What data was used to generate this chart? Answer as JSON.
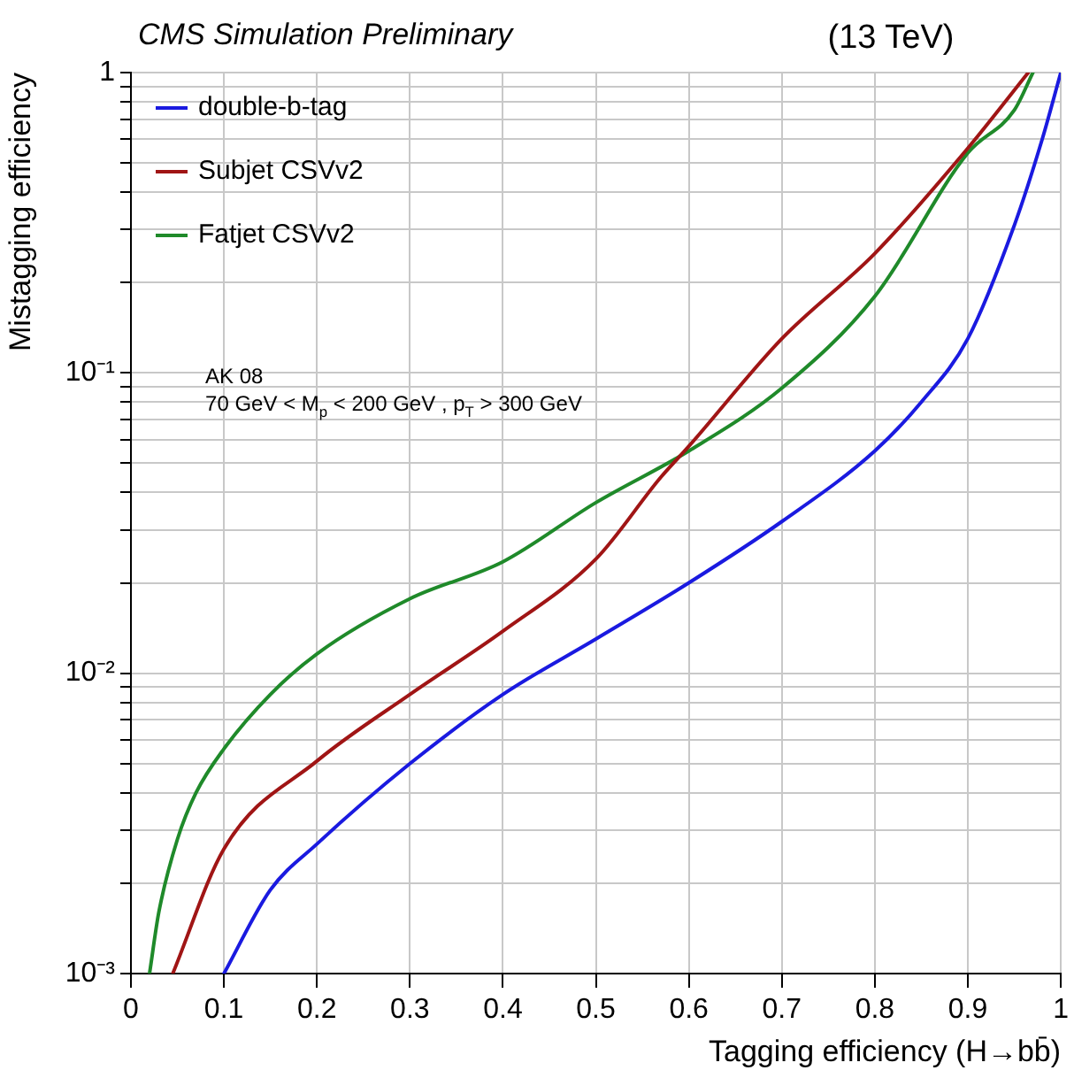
{
  "chart_data": {
    "type": "line",
    "title": "CMS Simulation Preliminary",
    "xlabel": "Tagging efficiency (H→bb̄)",
    "ylabel": "Mistagging efficiency",
    "annotations": [
      "(13 TeV)",
      "AK 08",
      "70 GeV < M$_{p}$ < 200 GeV , p$_{T}$ > 300 GeV"
    ],
    "log": "y",
    "grid": true,
    "legend": "top left",
    "marker": "none",
    "line_style": "solid",
    "xlim": [
      0,
      1
    ],
    "xticks": [
      0,
      0.1,
      0.2,
      0.3,
      0.4,
      0.5,
      0.6,
      0.7,
      0.8,
      0.9,
      1
    ],
    "ylim": [
      0.001,
      1
    ],
    "yticks": [
      {
        "value": 0.001,
        "label": "10⁻³"
      },
      {
        "value": 0.002,
        "label": null
      },
      {
        "value": 0.003,
        "label": null
      },
      {
        "value": 0.004,
        "label": null
      },
      {
        "value": 0.005,
        "label": null
      },
      {
        "value": 0.006,
        "label": null
      },
      {
        "value": 0.007,
        "label": null
      },
      {
        "value": 0.008,
        "label": null
      },
      {
        "value": 0.009,
        "label": null
      },
      {
        "value": 0.01,
        "label": "10⁻²"
      },
      {
        "value": 0.02,
        "label": null
      },
      {
        "value": 0.03,
        "label": null
      },
      {
        "value": 0.04,
        "label": null
      },
      {
        "value": 0.05,
        "label": null
      },
      {
        "value": 0.06,
        "label": null
      },
      {
        "value": 0.07,
        "label": null
      },
      {
        "value": 0.08,
        "label": null
      },
      {
        "value": 0.09,
        "label": null
      },
      {
        "value": 0.1,
        "label": "10⁻¹"
      },
      {
        "value": 0.2,
        "label": null
      },
      {
        "value": 0.3,
        "label": null
      },
      {
        "value": 0.4,
        "label": null
      },
      {
        "value": 0.5,
        "label": null
      },
      {
        "value": 0.6,
        "label": null
      },
      {
        "value": 0.7,
        "label": null
      },
      {
        "value": 0.8,
        "label": null
      },
      {
        "value": 0.9,
        "label": null
      },
      {
        "value": 1,
        "label": "1"
      }
    ],
    "series": [
      {
        "name": "double-b-tag",
        "color": "#1a1ae0",
        "x": [
          0.1,
          0.15,
          0.2,
          0.3,
          0.4,
          0.5,
          0.6,
          0.7,
          0.8,
          0.85,
          0.9,
          0.95,
          0.98,
          1
        ],
        "values": [
          0.001,
          0.0019,
          0.0027,
          0.005,
          0.0085,
          0.013,
          0.02,
          0.032,
          0.055,
          0.08,
          0.13,
          0.31,
          0.6,
          1
        ]
      },
      {
        "name": "Subjet CSVv2",
        "color": "#a01515",
        "x": [
          0.045,
          0.1,
          0.2,
          0.3,
          0.4,
          0.5,
          0.57,
          0.6,
          0.7,
          0.8,
          0.9,
          0.965
        ],
        "values": [
          0.001,
          0.0026,
          0.0051,
          0.0085,
          0.0138,
          0.024,
          0.045,
          0.057,
          0.13,
          0.25,
          0.56,
          1
        ]
      },
      {
        "name": "Fatjet CSVv2",
        "color": "#1f8a2a",
        "x": [
          0.02,
          0.03,
          0.05,
          0.07,
          0.1,
          0.15,
          0.2,
          0.3,
          0.4,
          0.5,
          0.6,
          0.7,
          0.8,
          0.9,
          0.95,
          0.97
        ],
        "values": [
          0.001,
          0.0016,
          0.0028,
          0.004,
          0.0056,
          0.0085,
          0.0116,
          0.0177,
          0.0235,
          0.037,
          0.055,
          0.089,
          0.18,
          0.54,
          0.75,
          1
        ]
      }
    ]
  }
}
